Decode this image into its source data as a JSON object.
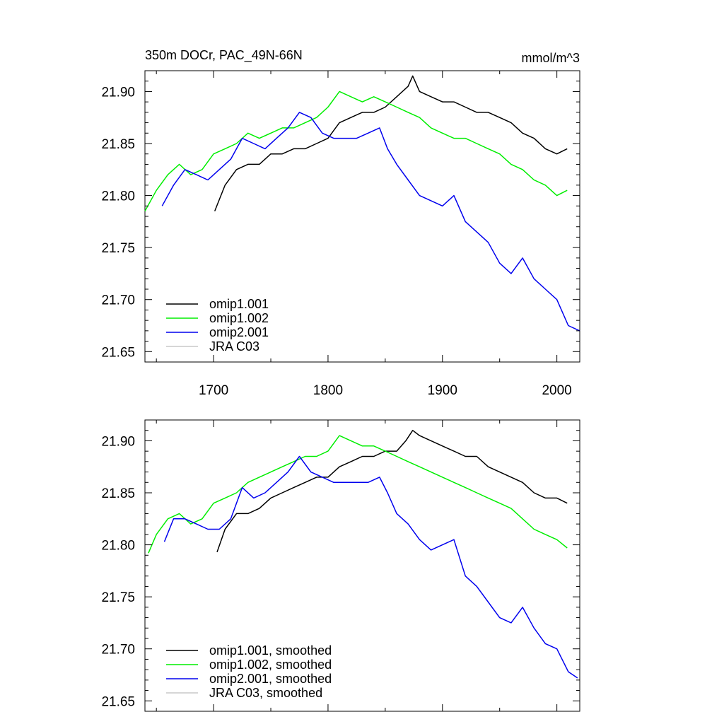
{
  "chart_data": [
    {
      "type": "line",
      "title": "350m DOCr, PAC_49N-66N",
      "units": "mmol/m^3",
      "xlim": [
        1640,
        2020
      ],
      "ylim": [
        21.64,
        21.92
      ],
      "x_ticks": [
        1700,
        1800,
        1900,
        2000
      ],
      "y_ticks": [
        21.65,
        21.7,
        21.75,
        21.8,
        21.85,
        21.9
      ],
      "y_tick_labels": [
        "21.65",
        "21.70",
        "21.75",
        "21.80",
        "21.85",
        "21.90"
      ],
      "x_tick_labels": [
        "1700",
        "1800",
        "1900",
        "2000"
      ],
      "legend_position": "bottom-left",
      "series": [
        {
          "name": "omip1.001",
          "color": "#000000",
          "x": [
            1701,
            1710,
            1720,
            1730,
            1740,
            1750,
            1760,
            1770,
            1780,
            1790,
            1800,
            1810,
            1820,
            1830,
            1840,
            1850,
            1860,
            1870,
            1874,
            1880,
            1890,
            1900,
            1910,
            1920,
            1930,
            1940,
            1950,
            1960,
            1970,
            1980,
            1990,
            2000,
            2009
          ],
          "y": [
            21.785,
            21.81,
            21.825,
            21.83,
            21.83,
            21.84,
            21.84,
            21.845,
            21.845,
            21.85,
            21.855,
            21.87,
            21.875,
            21.88,
            21.88,
            21.885,
            21.895,
            21.905,
            21.915,
            21.9,
            21.895,
            21.89,
            21.89,
            21.885,
            21.88,
            21.88,
            21.875,
            21.87,
            21.86,
            21.855,
            21.845,
            21.84,
            21.845
          ]
        },
        {
          "name": "omip1.002",
          "color": "#00ee00",
          "x": [
            1640,
            1650,
            1660,
            1670,
            1680,
            1690,
            1700,
            1710,
            1720,
            1730,
            1740,
            1750,
            1760,
            1770,
            1780,
            1790,
            1800,
            1810,
            1820,
            1830,
            1840,
            1850,
            1860,
            1870,
            1880,
            1890,
            1900,
            1910,
            1920,
            1930,
            1940,
            1950,
            1960,
            1970,
            1980,
            1990,
            2000,
            2009
          ],
          "y": [
            21.785,
            21.805,
            21.82,
            21.83,
            21.82,
            21.825,
            21.84,
            21.845,
            21.85,
            21.86,
            21.855,
            21.86,
            21.865,
            21.865,
            21.87,
            21.875,
            21.885,
            21.9,
            21.895,
            21.89,
            21.895,
            21.89,
            21.885,
            21.88,
            21.875,
            21.865,
            21.86,
            21.855,
            21.855,
            21.85,
            21.845,
            21.84,
            21.83,
            21.825,
            21.815,
            21.81,
            21.8,
            21.805
          ]
        },
        {
          "name": "omip2.001",
          "color": "#0000ee",
          "x": [
            1655,
            1665,
            1675,
            1685,
            1695,
            1705,
            1715,
            1725,
            1735,
            1745,
            1755,
            1765,
            1775,
            1785,
            1795,
            1805,
            1815,
            1825,
            1835,
            1845,
            1852,
            1860,
            1870,
            1880,
            1890,
            1900,
            1910,
            1920,
            1930,
            1940,
            1950,
            1960,
            1970,
            1980,
            1990,
            2000,
            2010,
            2020
          ],
          "y": [
            21.79,
            21.81,
            21.825,
            21.82,
            21.815,
            21.825,
            21.835,
            21.855,
            21.85,
            21.845,
            21.855,
            21.865,
            21.88,
            21.875,
            21.86,
            21.855,
            21.855,
            21.855,
            21.86,
            21.865,
            21.845,
            21.83,
            21.815,
            21.8,
            21.795,
            21.79,
            21.8,
            21.775,
            21.765,
            21.755,
            21.735,
            21.725,
            21.74,
            21.72,
            21.71,
            21.7,
            21.675,
            21.67
          ]
        },
        {
          "name": "JRA C03",
          "color": "#c8c8c8",
          "x": [],
          "y": []
        }
      ]
    },
    {
      "type": "line",
      "title": "",
      "units": "",
      "xlim": [
        1640,
        2020
      ],
      "ylim": [
        21.64,
        21.92
      ],
      "x_ticks": [
        1700,
        1800,
        1900,
        2000
      ],
      "y_ticks": [
        21.65,
        21.7,
        21.75,
        21.8,
        21.85,
        21.9
      ],
      "y_tick_labels": [
        "21.65",
        "21.70",
        "21.75",
        "21.80",
        "21.85",
        "21.90"
      ],
      "legend_position": "bottom-left",
      "series": [
        {
          "name": "omip1.001, smoothed",
          "color": "#000000",
          "x": [
            1703,
            1710,
            1720,
            1730,
            1740,
            1750,
            1760,
            1770,
            1780,
            1790,
            1800,
            1810,
            1820,
            1830,
            1840,
            1850,
            1860,
            1868,
            1874,
            1880,
            1890,
            1900,
            1910,
            1920,
            1930,
            1940,
            1950,
            1960,
            1970,
            1980,
            1990,
            2000,
            2009
          ],
          "y": [
            21.793,
            21.815,
            21.83,
            21.83,
            21.835,
            21.845,
            21.85,
            21.855,
            21.86,
            21.865,
            21.865,
            21.875,
            21.88,
            21.885,
            21.885,
            21.89,
            21.89,
            21.9,
            21.91,
            21.905,
            21.9,
            21.895,
            21.89,
            21.885,
            21.885,
            21.875,
            21.87,
            21.865,
            21.86,
            21.85,
            21.845,
            21.845,
            21.84
          ]
        },
        {
          "name": "omip1.002, smoothed",
          "color": "#00ee00",
          "x": [
            1643,
            1650,
            1660,
            1670,
            1680,
            1690,
            1700,
            1710,
            1720,
            1730,
            1740,
            1750,
            1760,
            1770,
            1780,
            1790,
            1800,
            1810,
            1820,
            1830,
            1840,
            1850,
            1860,
            1870,
            1880,
            1890,
            1900,
            1910,
            1920,
            1930,
            1940,
            1950,
            1960,
            1970,
            1980,
            1990,
            2000,
            2009
          ],
          "y": [
            21.792,
            21.81,
            21.825,
            21.83,
            21.82,
            21.825,
            21.84,
            21.845,
            21.85,
            21.86,
            21.865,
            21.87,
            21.875,
            21.88,
            21.885,
            21.885,
            21.89,
            21.905,
            21.9,
            21.895,
            21.895,
            21.89,
            21.885,
            21.88,
            21.875,
            21.87,
            21.865,
            21.86,
            21.855,
            21.85,
            21.845,
            21.84,
            21.835,
            21.825,
            21.815,
            21.81,
            21.805,
            21.797
          ]
        },
        {
          "name": "omip2.001, smoothed",
          "color": "#0000ee",
          "x": [
            1657,
            1665,
            1675,
            1685,
            1695,
            1705,
            1715,
            1725,
            1735,
            1745,
            1755,
            1765,
            1775,
            1785,
            1795,
            1805,
            1815,
            1825,
            1835,
            1845,
            1852,
            1860,
            1870,
            1880,
            1890,
            1900,
            1910,
            1920,
            1930,
            1940,
            1950,
            1960,
            1970,
            1980,
            1990,
            2000,
            2010,
            2018
          ],
          "y": [
            21.803,
            21.825,
            21.825,
            21.82,
            21.815,
            21.815,
            21.825,
            21.855,
            21.845,
            21.85,
            21.86,
            21.87,
            21.885,
            21.87,
            21.865,
            21.86,
            21.86,
            21.86,
            21.86,
            21.865,
            21.85,
            21.83,
            21.82,
            21.805,
            21.795,
            21.8,
            21.805,
            21.77,
            21.76,
            21.745,
            21.73,
            21.725,
            21.74,
            21.72,
            21.705,
            21.7,
            21.678,
            21.672
          ]
        },
        {
          "name": "JRA C03, smoothed",
          "color": "#c8c8c8",
          "x": [],
          "y": []
        }
      ]
    }
  ]
}
